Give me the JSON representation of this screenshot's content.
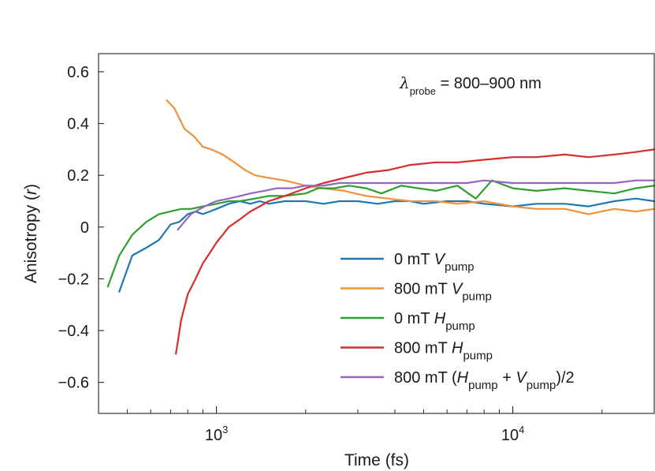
{
  "chart_data": {
    "type": "line",
    "title": "",
    "xlabel": "Time (fs)",
    "ylabel": "Anisotropy (r)",
    "xscale": "log",
    "xlim": [
      400,
      30000
    ],
    "ylim": [
      -0.72,
      0.67
    ],
    "grid": false,
    "legend_position": "bottom-right",
    "annotation": {
      "symbol": "λ",
      "subscript": "probe",
      "text": "= 800–900 nm"
    },
    "x_ticks_major": [
      {
        "value": 1000,
        "base": "10",
        "exp": "3"
      },
      {
        "value": 10000,
        "base": "10",
        "exp": "4"
      }
    ],
    "x_ticks_minor": [
      500,
      600,
      700,
      800,
      900,
      2000,
      3000,
      4000,
      5000,
      6000,
      7000,
      8000,
      9000,
      20000
    ],
    "y_ticks": [
      {
        "value": 0.6,
        "label": "0.6"
      },
      {
        "value": 0.4,
        "label": "0.4"
      },
      {
        "value": 0.2,
        "label": "0.2"
      },
      {
        "value": 0,
        "label": "0"
      },
      {
        "value": -0.2,
        "label": "−0.2"
      },
      {
        "value": -0.4,
        "label": "−0.4"
      },
      {
        "value": -0.6,
        "label": "−0.6"
      }
    ],
    "series": [
      {
        "name": "0 mT V_pump",
        "legend": {
          "pre": "0 mT ",
          "italic": "V",
          "sub": "pump",
          "post": ""
        },
        "color": "#1f77b4",
        "x": [
          470,
          520,
          580,
          640,
          700,
          750,
          800,
          850,
          900,
          950,
          1000,
          1100,
          1200,
          1300,
          1400,
          1500,
          1700,
          2000,
          2300,
          2600,
          3000,
          3500,
          4000,
          4500,
          5000,
          6000,
          7000,
          8000,
          10000,
          12000,
          15000,
          18000,
          22000,
          26000,
          30000
        ],
        "y": [
          -0.25,
          -0.11,
          -0.08,
          -0.05,
          0.01,
          0.02,
          0.05,
          0.06,
          0.05,
          0.06,
          0.07,
          0.09,
          0.1,
          0.09,
          0.1,
          0.09,
          0.1,
          0.1,
          0.09,
          0.1,
          0.1,
          0.09,
          0.1,
          0.1,
          0.09,
          0.1,
          0.1,
          0.09,
          0.08,
          0.09,
          0.09,
          0.08,
          0.1,
          0.11,
          0.1
        ]
      },
      {
        "name": "800 mT V_pump",
        "legend": {
          "pre": "800 mT ",
          "italic": "V",
          "sub": "pump",
          "post": ""
        },
        "color": "#f0923b",
        "x": [
          680,
          720,
          780,
          840,
          900,
          960,
          1050,
          1150,
          1250,
          1350,
          1500,
          1700,
          2000,
          2300,
          2700,
          3200,
          3800,
          4500,
          5500,
          6500,
          8000,
          10000,
          12000,
          15000,
          18000,
          22000,
          26000,
          30000
        ],
        "y": [
          0.49,
          0.46,
          0.38,
          0.35,
          0.31,
          0.3,
          0.28,
          0.25,
          0.22,
          0.2,
          0.19,
          0.18,
          0.16,
          0.15,
          0.14,
          0.12,
          0.11,
          0.1,
          0.1,
          0.09,
          0.1,
          0.08,
          0.07,
          0.07,
          0.05,
          0.07,
          0.06,
          0.07
        ]
      },
      {
        "name": "0 mT H_pump",
        "legend": {
          "pre": "0 mT ",
          "italic": "H",
          "sub": "pump",
          "post": ""
        },
        "color": "#2ca02c",
        "x": [
          430,
          470,
          520,
          580,
          640,
          700,
          760,
          820,
          900,
          1000,
          1100,
          1200,
          1350,
          1500,
          1700,
          2000,
          2200,
          2500,
          2800,
          3200,
          3600,
          4200,
          4800,
          5500,
          6500,
          7500,
          8500,
          10000,
          12000,
          15000,
          18000,
          22000,
          26000,
          30000
        ],
        "y": [
          -0.23,
          -0.11,
          -0.03,
          0.02,
          0.05,
          0.06,
          0.07,
          0.07,
          0.08,
          0.09,
          0.1,
          0.1,
          0.11,
          0.12,
          0.12,
          0.13,
          0.15,
          0.15,
          0.16,
          0.15,
          0.13,
          0.16,
          0.15,
          0.14,
          0.16,
          0.11,
          0.18,
          0.15,
          0.14,
          0.15,
          0.14,
          0.13,
          0.15,
          0.16
        ]
      },
      {
        "name": "800 mT H_pump",
        "legend": {
          "pre": "800 mT ",
          "italic": "H",
          "sub": "pump",
          "post": ""
        },
        "color": "#d62f2b",
        "x": [
          730,
          760,
          800,
          850,
          900,
          950,
          1000,
          1050,
          1100,
          1200,
          1300,
          1400,
          1500,
          1700,
          2000,
          2300,
          2700,
          3200,
          3800,
          4500,
          5500,
          6500,
          8000,
          10000,
          12000,
          15000,
          18000,
          22000,
          26000,
          30000
        ],
        "y": [
          -0.49,
          -0.36,
          -0.26,
          -0.2,
          -0.14,
          -0.1,
          -0.06,
          -0.03,
          0.0,
          0.03,
          0.06,
          0.08,
          0.1,
          0.12,
          0.15,
          0.17,
          0.19,
          0.21,
          0.22,
          0.24,
          0.25,
          0.25,
          0.26,
          0.27,
          0.27,
          0.28,
          0.27,
          0.28,
          0.29,
          0.3
        ]
      },
      {
        "name": "800 mT (H_pump + V_pump)/2",
        "legend": {
          "pre": "800 mT (",
          "italic": "H",
          "sub": "pump",
          "mid": " + ",
          "italic2": "V",
          "sub2": "pump",
          "post": ")/2"
        },
        "color": "#9467bd",
        "x": [
          740,
          780,
          820,
          880,
          950,
          1000,
          1100,
          1200,
          1300,
          1450,
          1600,
          1800,
          2000,
          2300,
          2600,
          3000,
          3500,
          4000,
          5000,
          6000,
          7000,
          8000,
          10000,
          12000,
          15000,
          18000,
          22000,
          26000,
          30000
        ],
        "y": [
          -0.01,
          0.02,
          0.05,
          0.07,
          0.09,
          0.1,
          0.11,
          0.12,
          0.13,
          0.14,
          0.15,
          0.15,
          0.16,
          0.16,
          0.17,
          0.17,
          0.17,
          0.17,
          0.17,
          0.17,
          0.17,
          0.18,
          0.17,
          0.17,
          0.17,
          0.17,
          0.17,
          0.18,
          0.18
        ]
      }
    ]
  }
}
